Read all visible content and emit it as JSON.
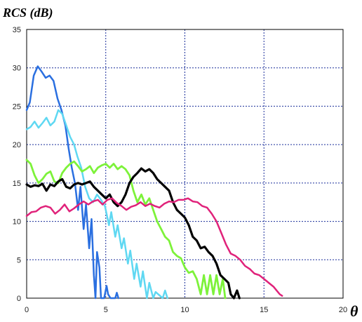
{
  "chart_data": {
    "type": "line",
    "ylabel": "RCS (dB)",
    "xlabel": "θ",
    "xlim": [
      0,
      20
    ],
    "ylim": [
      0,
      35
    ],
    "x_ticks": [
      "0",
      "5",
      "10",
      "15",
      "20"
    ],
    "y_ticks": [
      "0",
      "5",
      "10",
      "15",
      "20",
      "25",
      "30",
      "35"
    ],
    "grid": true,
    "legend": "none",
    "series": [
      {
        "color": "#2a6fe0",
        "stroke": 2.5,
        "points": [
          [
            0.0,
            24.5
          ],
          [
            0.2,
            25.5
          ],
          [
            0.45,
            29.0
          ],
          [
            0.7,
            30.2
          ],
          [
            0.95,
            29.5
          ],
          [
            1.2,
            28.7
          ],
          [
            1.45,
            29.0
          ],
          [
            1.7,
            28.3
          ],
          [
            1.95,
            26.0
          ],
          [
            2.2,
            24.5
          ],
          [
            2.45,
            22.5
          ],
          [
            2.65,
            19.5
          ],
          [
            2.85,
            17.0
          ],
          [
            3.05,
            15.0
          ],
          [
            3.25,
            11.5
          ],
          [
            3.4,
            14.5
          ],
          [
            3.6,
            9.0
          ],
          [
            3.75,
            12.2
          ],
          [
            3.95,
            6.5
          ],
          [
            4.1,
            10.3
          ],
          [
            4.25,
            3.0
          ],
          [
            4.35,
            0.0
          ],
          [
            4.45,
            6.0
          ],
          [
            4.6,
            4.0
          ],
          [
            4.7,
            0.0
          ],
          [
            4.9,
            0.0
          ],
          [
            5.05,
            1.6
          ],
          [
            5.15,
            0.5
          ],
          [
            5.3,
            0.0
          ],
          [
            5.6,
            0.0
          ],
          [
            5.7,
            0.7
          ],
          [
            5.8,
            0.0
          ]
        ]
      },
      {
        "color": "#5fd8f2",
        "stroke": 2.5,
        "points": [
          [
            0.0,
            22.0
          ],
          [
            0.25,
            22.3
          ],
          [
            0.5,
            23.0
          ],
          [
            0.75,
            22.2
          ],
          [
            1.0,
            22.8
          ],
          [
            1.25,
            23.5
          ],
          [
            1.5,
            22.5
          ],
          [
            1.75,
            23.0
          ],
          [
            2.0,
            24.5
          ],
          [
            2.25,
            24.0
          ],
          [
            2.5,
            22.5
          ],
          [
            2.75,
            21.0
          ],
          [
            3.0,
            20.0
          ],
          [
            3.2,
            18.5
          ],
          [
            3.45,
            17.0
          ],
          [
            3.7,
            14.5
          ],
          [
            3.95,
            13.0
          ],
          [
            4.2,
            12.5
          ],
          [
            4.45,
            13.5
          ],
          [
            4.7,
            12.8
          ],
          [
            4.95,
            12.0
          ],
          [
            5.2,
            9.5
          ],
          [
            5.35,
            11.2
          ],
          [
            5.6,
            8.0
          ],
          [
            5.75,
            9.5
          ],
          [
            6.0,
            6.5
          ],
          [
            6.15,
            7.8
          ],
          [
            6.4,
            4.5
          ],
          [
            6.55,
            6.2
          ],
          [
            6.8,
            2.5
          ],
          [
            6.95,
            4.5
          ],
          [
            7.2,
            1.5
          ],
          [
            7.35,
            3.5
          ],
          [
            7.6,
            0.0
          ],
          [
            7.75,
            2.0
          ],
          [
            8.0,
            0.0
          ],
          [
            8.15,
            0.8
          ],
          [
            8.6,
            0.0
          ],
          [
            8.75,
            1.0
          ],
          [
            8.9,
            0.0
          ]
        ]
      },
      {
        "color": "#7df23a",
        "stroke": 2.8,
        "points": [
          [
            0.0,
            18.0
          ],
          [
            0.25,
            17.5
          ],
          [
            0.5,
            16.0
          ],
          [
            0.75,
            15.0
          ],
          [
            1.0,
            15.5
          ],
          [
            1.25,
            16.2
          ],
          [
            1.5,
            16.5
          ],
          [
            1.75,
            15.2
          ],
          [
            2.0,
            15.0
          ],
          [
            2.25,
            16.3
          ],
          [
            2.5,
            17.0
          ],
          [
            2.75,
            17.5
          ],
          [
            3.0,
            17.8
          ],
          [
            3.25,
            17.2
          ],
          [
            3.5,
            16.5
          ],
          [
            3.75,
            16.8
          ],
          [
            4.0,
            17.2
          ],
          [
            4.25,
            16.3
          ],
          [
            4.5,
            17.0
          ],
          [
            4.75,
            17.3
          ],
          [
            5.0,
            17.5
          ],
          [
            5.25,
            17.0
          ],
          [
            5.5,
            17.5
          ],
          [
            5.75,
            16.8
          ],
          [
            6.0,
            17.2
          ],
          [
            6.25,
            16.8
          ],
          [
            6.5,
            16.0
          ],
          [
            6.75,
            14.0
          ],
          [
            7.0,
            12.5
          ],
          [
            7.25,
            13.5
          ],
          [
            7.5,
            12.2
          ],
          [
            7.75,
            13.0
          ],
          [
            8.0,
            11.5
          ],
          [
            8.25,
            10.0
          ],
          [
            8.5,
            9.0
          ],
          [
            8.75,
            8.0
          ],
          [
            9.0,
            7.5
          ],
          [
            9.25,
            6.0
          ],
          [
            9.5,
            5.5
          ],
          [
            9.75,
            5.2
          ],
          [
            10.0,
            4.0
          ],
          [
            10.25,
            3.3
          ],
          [
            10.5,
            3.5
          ],
          [
            10.75,
            2.5
          ],
          [
            11.0,
            0.5
          ],
          [
            11.2,
            3.0
          ],
          [
            11.4,
            0.5
          ],
          [
            11.6,
            3.0
          ],
          [
            11.8,
            0.5
          ],
          [
            12.0,
            3.0
          ],
          [
            12.2,
            0.5
          ],
          [
            12.4,
            2.5
          ],
          [
            12.55,
            0.0
          ]
        ]
      },
      {
        "color": "#000000",
        "stroke": 3.2,
        "points": [
          [
            0.0,
            14.8
          ],
          [
            0.25,
            14.5
          ],
          [
            0.5,
            14.7
          ],
          [
            0.75,
            14.6
          ],
          [
            1.0,
            14.9
          ],
          [
            1.25,
            14.0
          ],
          [
            1.5,
            14.8
          ],
          [
            1.75,
            14.6
          ],
          [
            2.0,
            15.2
          ],
          [
            2.25,
            15.5
          ],
          [
            2.5,
            14.5
          ],
          [
            2.75,
            14.3
          ],
          [
            3.0,
            14.8
          ],
          [
            3.25,
            15.0
          ],
          [
            3.5,
            14.8
          ],
          [
            3.75,
            15.0
          ],
          [
            4.0,
            15.2
          ],
          [
            4.25,
            14.5
          ],
          [
            4.5,
            14.0
          ],
          [
            4.75,
            13.5
          ],
          [
            5.0,
            13.0
          ],
          [
            5.25,
            13.5
          ],
          [
            5.5,
            12.5
          ],
          [
            5.75,
            12.0
          ],
          [
            6.0,
            12.5
          ],
          [
            6.25,
            13.5
          ],
          [
            6.5,
            15.0
          ],
          [
            6.75,
            15.8
          ],
          [
            7.0,
            16.3
          ],
          [
            7.25,
            16.9
          ],
          [
            7.5,
            16.5
          ],
          [
            7.75,
            16.8
          ],
          [
            8.0,
            16.3
          ],
          [
            8.25,
            15.5
          ],
          [
            8.5,
            15.0
          ],
          [
            8.75,
            14.5
          ],
          [
            9.0,
            14.0
          ],
          [
            9.25,
            12.5
          ],
          [
            9.5,
            11.5
          ],
          [
            9.75,
            11.0
          ],
          [
            10.0,
            10.5
          ],
          [
            10.25,
            9.5
          ],
          [
            10.5,
            8.0
          ],
          [
            10.75,
            7.5
          ],
          [
            11.0,
            6.5
          ],
          [
            11.25,
            6.7
          ],
          [
            11.5,
            6.0
          ],
          [
            11.75,
            5.5
          ],
          [
            12.0,
            4.5
          ],
          [
            12.25,
            3.0
          ],
          [
            12.5,
            2.5
          ],
          [
            12.75,
            2.0
          ],
          [
            12.9,
            0.5
          ],
          [
            13.1,
            0.0
          ],
          [
            13.3,
            1.0
          ],
          [
            13.45,
            0.0
          ]
        ]
      },
      {
        "color": "#e0227a",
        "stroke": 2.5,
        "points": [
          [
            0.0,
            10.7
          ],
          [
            0.3,
            11.2
          ],
          [
            0.6,
            11.3
          ],
          [
            0.9,
            11.8
          ],
          [
            1.2,
            12.0
          ],
          [
            1.5,
            11.8
          ],
          [
            1.8,
            11.0
          ],
          [
            2.1,
            11.5
          ],
          [
            2.4,
            12.2
          ],
          [
            2.7,
            11.3
          ],
          [
            3.0,
            11.7
          ],
          [
            3.3,
            12.2
          ],
          [
            3.6,
            12.6
          ],
          [
            3.9,
            12.2
          ],
          [
            4.2,
            12.6
          ],
          [
            4.5,
            12.8
          ],
          [
            4.8,
            12.2
          ],
          [
            5.1,
            12.8
          ],
          [
            5.4,
            13.0
          ],
          [
            5.7,
            12.4
          ],
          [
            6.0,
            12.0
          ],
          [
            6.3,
            11.5
          ],
          [
            6.6,
            11.9
          ],
          [
            6.9,
            12.1
          ],
          [
            7.2,
            12.5
          ],
          [
            7.5,
            12.0
          ],
          [
            7.8,
            12.3
          ],
          [
            8.1,
            12.0
          ],
          [
            8.4,
            11.8
          ],
          [
            8.7,
            12.3
          ],
          [
            9.0,
            12.6
          ],
          [
            9.3,
            12.5
          ],
          [
            9.6,
            12.8
          ],
          [
            9.9,
            12.8
          ],
          [
            10.2,
            13.0
          ],
          [
            10.5,
            12.6
          ],
          [
            10.8,
            12.5
          ],
          [
            11.1,
            12.0
          ],
          [
            11.4,
            11.8
          ],
          [
            11.7,
            11.0
          ],
          [
            12.0,
            10.0
          ],
          [
            12.3,
            8.5
          ],
          [
            12.6,
            7.0
          ],
          [
            12.9,
            5.8
          ],
          [
            13.2,
            5.5
          ],
          [
            13.5,
            5.0
          ],
          [
            13.8,
            4.2
          ],
          [
            14.1,
            3.8
          ],
          [
            14.4,
            3.2
          ],
          [
            14.7,
            3.0
          ],
          [
            15.0,
            2.5
          ],
          [
            15.3,
            2.0
          ],
          [
            15.6,
            1.5
          ],
          [
            15.8,
            1.0
          ],
          [
            16.0,
            0.5
          ],
          [
            16.15,
            0.3
          ]
        ]
      }
    ]
  }
}
